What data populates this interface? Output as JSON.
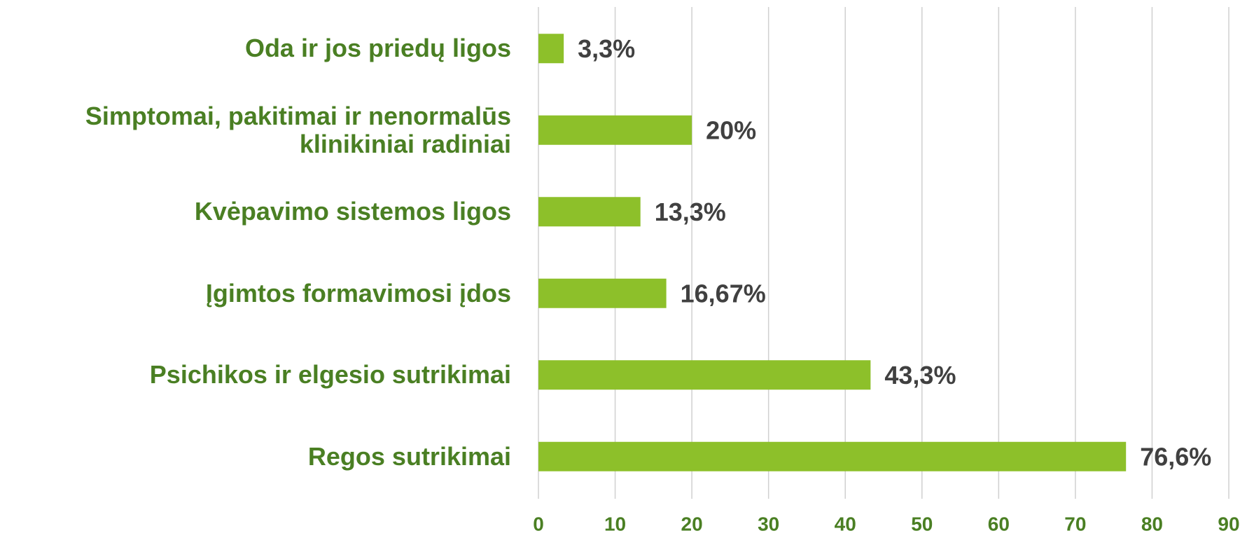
{
  "chart_data": {
    "type": "bar",
    "orientation": "horizontal",
    "categories": [
      "Oda ir jos priedų ligos",
      "Simptomai, pakitimai ir nenormalūs klinikiniai radiniai",
      "Kvėpavimo sistemos ligos",
      "Įgimtos formavimosi įdos",
      "Psichikos ir elgesio sutrikimai",
      "Regos sutrikimai"
    ],
    "values": [
      3.3,
      20,
      13.3,
      16.67,
      43.3,
      76.6
    ],
    "value_labels": [
      "3,3%",
      "20%",
      "13,3%",
      "16,67%",
      "43,3%",
      "76,6%"
    ],
    "color": "#8dc02a",
    "xlim": [
      0,
      90
    ],
    "xticks": [
      0,
      10,
      20,
      30,
      40,
      50,
      60,
      70,
      80,
      90
    ],
    "grid": true
  }
}
